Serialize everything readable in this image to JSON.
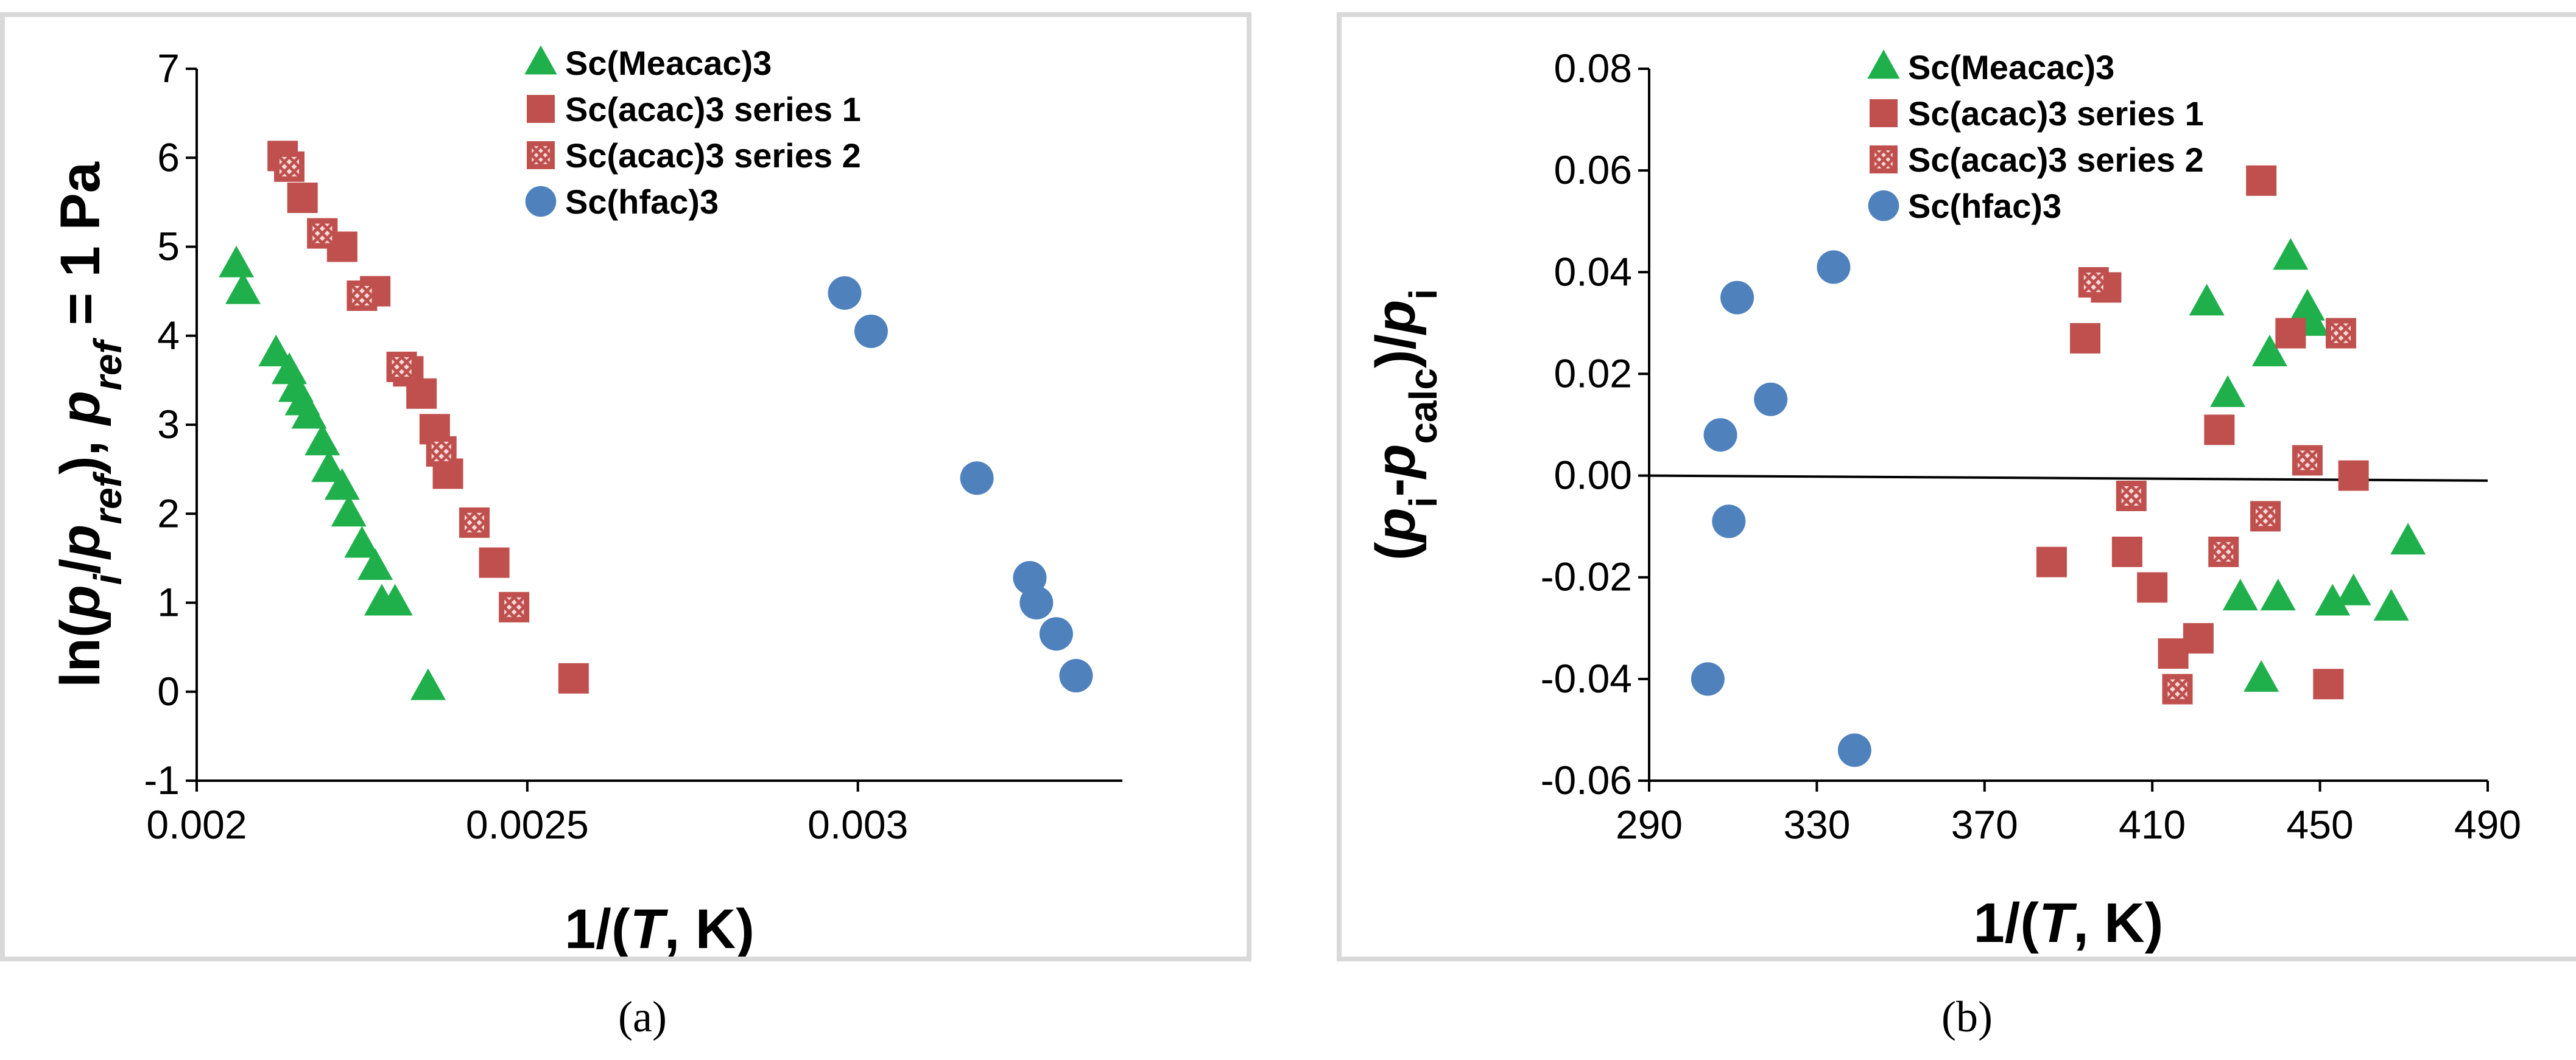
{
  "colors": {
    "green": "#1fb04c",
    "red": "#c0504d",
    "blue": "#4f81bd",
    "hatch": "#ffffff"
  },
  "chart_data": [
    {
      "type": "scatter",
      "panel": "a",
      "caption": "(a)",
      "xlabel": "1/(T, K)",
      "ylabel": "ln(pi/pref), pref = 1 Pa",
      "xlim": [
        0.002,
        0.0034
      ],
      "ylim": [
        -1,
        7
      ],
      "x_ticks": [
        0.002,
        0.0025,
        0.003
      ],
      "x_tick_labels": [
        "0.002",
        "0.0025",
        "0.003"
      ],
      "y_ticks": [
        -1,
        0,
        1,
        2,
        3,
        4,
        5,
        6,
        7
      ],
      "y_tick_labels": [
        "-1",
        "0",
        "1",
        "2",
        "3",
        "4",
        "5",
        "6",
        "7"
      ],
      "legend_position": "top-center",
      "series": [
        {
          "name": "Sc(Meacac)3",
          "marker": "triangle",
          "color": "green",
          "x": [
            0.00206,
            0.00207,
            0.00212,
            0.00214,
            0.00215,
            0.00216,
            0.00217,
            0.00219,
            0.0022,
            0.00222,
            0.00223,
            0.00225,
            0.00227,
            0.00228,
            0.0023,
            0.00235
          ],
          "y": [
            4.8,
            4.5,
            3.8,
            3.6,
            3.4,
            3.25,
            3.1,
            2.8,
            2.5,
            2.3,
            2.0,
            1.65,
            1.4,
            1.0,
            1.0,
            0.05
          ]
        },
        {
          "name": "Sc(acac)3 series 1",
          "marker": "square",
          "color": "red",
          "x": [
            0.00213,
            0.00216,
            0.00219,
            0.00222,
            0.00227,
            0.00232,
            0.00234,
            0.00236,
            0.00238,
            0.00245,
            0.00257
          ],
          "y": [
            6.02,
            5.55,
            5.15,
            5.0,
            4.5,
            3.6,
            3.35,
            2.95,
            2.45,
            1.45,
            0.15
          ]
        },
        {
          "name": "Sc(acac)3 series 2",
          "marker": "hatched-square",
          "color": "red",
          "x": [
            0.00214,
            0.00219,
            0.00225,
            0.00231,
            0.00237,
            0.00242,
            0.00248
          ],
          "y": [
            5.9,
            5.15,
            4.45,
            3.65,
            2.7,
            1.9,
            0.95
          ]
        },
        {
          "name": "Sc(hfac)3",
          "marker": "circle",
          "color": "blue",
          "x": [
            0.00298,
            0.00302,
            0.00318,
            0.00326,
            0.00327,
            0.0033,
            0.00333
          ],
          "y": [
            4.48,
            4.05,
            2.4,
            1.28,
            1.0,
            0.65,
            0.18
          ]
        }
      ]
    },
    {
      "type": "scatter",
      "panel": "b",
      "caption": "(b)",
      "xlabel": "1/(T, K)",
      "ylabel": "(pi-pcalc)/pi",
      "xlim": [
        290,
        490
      ],
      "ylim": [
        -0.06,
        0.08
      ],
      "x_ticks": [
        290,
        330,
        370,
        410,
        450,
        490
      ],
      "x_tick_labels": [
        "290",
        "330",
        "370",
        "410",
        "450",
        "490"
      ],
      "y_ticks": [
        -0.06,
        -0.04,
        -0.02,
        0.0,
        0.02,
        0.04,
        0.06,
        0.08
      ],
      "y_tick_labels": [
        "-0.06",
        "-0.04",
        "-0.02",
        "0.00",
        "0.02",
        "0.04",
        "0.06",
        "0.08"
      ],
      "legend_position": "top-left",
      "reference_line": {
        "x": [
          290,
          490
        ],
        "y": [
          0.0,
          -0.001
        ]
      },
      "series": [
        {
          "name": "Sc(Meacac)3",
          "marker": "triangle",
          "color": "green",
          "x": [
            423,
            428,
            431,
            436,
            438,
            440,
            443,
            447,
            448,
            453,
            458,
            467,
            471
          ],
          "y": [
            0.034,
            0.016,
            -0.024,
            -0.04,
            0.024,
            -0.024,
            0.043,
            0.033,
            0.03,
            -0.025,
            -0.023,
            -0.026,
            -0.013
          ]
        },
        {
          "name": "Sc(acac)3 series 1",
          "marker": "square",
          "color": "red",
          "x": [
            386,
            394,
            399,
            404,
            410,
            415,
            421,
            426,
            436,
            443,
            452,
            458
          ],
          "y": [
            -0.017,
            0.027,
            0.037,
            -0.015,
            -0.022,
            -0.035,
            -0.032,
            0.009,
            0.058,
            0.028,
            -0.041,
            0.0
          ]
        },
        {
          "name": "Sc(acac)3 series 2",
          "marker": "hatched-square",
          "color": "red",
          "x": [
            396,
            405,
            416,
            427,
            437,
            447,
            455
          ],
          "y": [
            0.038,
            -0.004,
            -0.042,
            -0.015,
            -0.008,
            0.003,
            0.028
          ]
        },
        {
          "name": "Sc(hfac)3",
          "marker": "circle",
          "color": "blue",
          "x": [
            304,
            307,
            309,
            311,
            319,
            334,
            339
          ],
          "y": [
            -0.04,
            0.008,
            -0.009,
            0.035,
            0.015,
            0.041,
            -0.054
          ]
        }
      ]
    }
  ]
}
